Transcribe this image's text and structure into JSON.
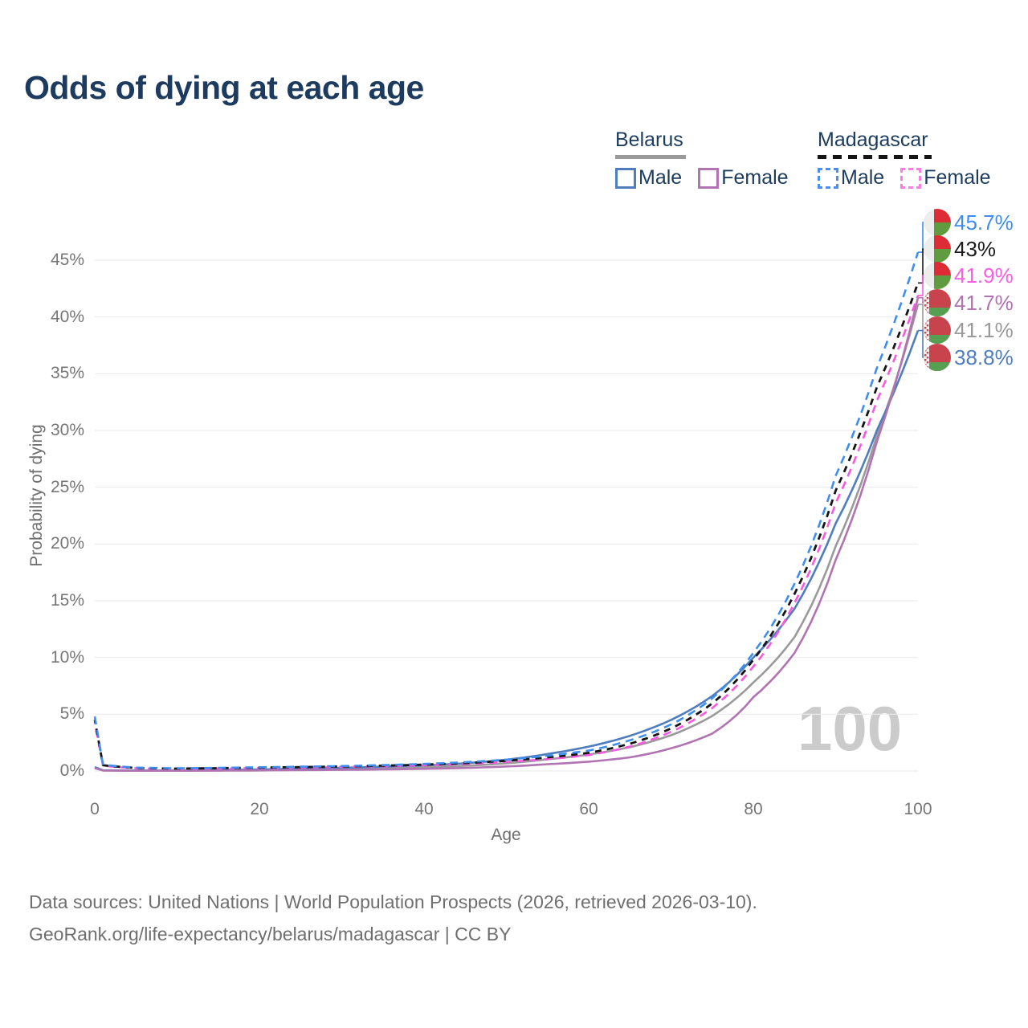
{
  "title": "Odds of dying at each age",
  "watermark": "100",
  "legend": {
    "groups": [
      {
        "country": "Belarus",
        "swatch_color": "#9a9a9a",
        "style": "solid",
        "items": [
          {
            "label": "Male",
            "color": "#4f7dbe",
            "style": "solid"
          },
          {
            "label": "Female",
            "color": "#b173b1",
            "style": "solid"
          }
        ]
      },
      {
        "country": "Madagascar",
        "swatch_color": "#151515",
        "style": "dashed",
        "items": [
          {
            "label": "Male",
            "color": "#4b8df0",
            "style": "dashed"
          },
          {
            "label": "Female",
            "color": "#fb7ce2",
            "style": "dashed"
          }
        ]
      }
    ]
  },
  "chart_data": {
    "type": "line",
    "title": "Odds of dying at each age",
    "xlabel": "Age",
    "ylabel": "Probability of dying",
    "xlim": [
      0,
      100
    ],
    "ylim": [
      0,
      47
    ],
    "grid": true,
    "x_ticks": [
      "0",
      "20",
      "40",
      "60",
      "80",
      "100"
    ],
    "y_ticks": [
      "0%",
      "5%",
      "10%",
      "15%",
      "20%",
      "25%",
      "30%",
      "35%",
      "40%",
      "45%"
    ],
    "ages": [
      0,
      1,
      5,
      10,
      15,
      20,
      25,
      30,
      35,
      40,
      45,
      50,
      55,
      60,
      65,
      70,
      75,
      80,
      85,
      90,
      95,
      100
    ],
    "unit": "percent",
    "series": [
      {
        "name": "Belarus both sexes",
        "country": "Belarus",
        "sex": "both",
        "color": "#9a9a9a",
        "dash": "solid",
        "values": [
          0.3,
          0.05,
          0.03,
          0.03,
          0.05,
          0.09,
          0.13,
          0.18,
          0.25,
          0.33,
          0.46,
          0.68,
          1.03,
          1.45,
          2.1,
          3.15,
          4.85,
          7.8,
          11.8,
          19.8,
          29.5,
          41.1
        ]
      },
      {
        "name": "Belarus male",
        "country": "Belarus",
        "sex": "male",
        "color": "#4f7dbe",
        "dash": "solid",
        "values": [
          0.35,
          0.06,
          0.04,
          0.04,
          0.08,
          0.14,
          0.2,
          0.28,
          0.38,
          0.5,
          0.68,
          1.0,
          1.5,
          2.15,
          3.1,
          4.5,
          6.6,
          10.0,
          14.3,
          21.8,
          30.0,
          38.8
        ]
      },
      {
        "name": "Belarus female",
        "country": "Belarus",
        "sex": "female",
        "color": "#b173b1",
        "dash": "solid",
        "values": [
          0.25,
          0.04,
          0.02,
          0.02,
          0.03,
          0.05,
          0.08,
          0.1,
          0.14,
          0.19,
          0.27,
          0.4,
          0.6,
          0.82,
          1.2,
          2.0,
          3.3,
          6.5,
          10.4,
          18.6,
          29.0,
          41.7
        ]
      },
      {
        "name": "Madagascar female",
        "country": "Madagascar",
        "sex": "female",
        "color": "#f958e0",
        "dash": "dashed",
        "values": [
          4.2,
          0.46,
          0.24,
          0.19,
          0.22,
          0.26,
          0.3,
          0.36,
          0.42,
          0.5,
          0.62,
          0.8,
          1.05,
          1.4,
          2.15,
          3.45,
          5.55,
          9.2,
          14.8,
          23.6,
          32.6,
          41.9
        ]
      },
      {
        "name": "Madagascar both sexes",
        "country": "Madagascar",
        "sex": "both",
        "color": "#151515",
        "dash": "dashed",
        "values": [
          4.5,
          0.5,
          0.27,
          0.21,
          0.25,
          0.3,
          0.34,
          0.4,
          0.47,
          0.56,
          0.7,
          0.9,
          1.2,
          1.6,
          2.4,
          3.75,
          5.95,
          9.8,
          15.6,
          24.7,
          33.8,
          43.0
        ]
      },
      {
        "name": "Madagascar male",
        "country": "Madagascar",
        "sex": "male",
        "color": "#3e8ef0",
        "dash": "dashed",
        "values": [
          4.8,
          0.55,
          0.3,
          0.24,
          0.28,
          0.33,
          0.38,
          0.44,
          0.52,
          0.62,
          0.78,
          1.0,
          1.35,
          1.8,
          2.7,
          4.1,
          6.4,
          10.4,
          16.5,
          26.0,
          35.5,
          45.7
        ]
      }
    ],
    "end_labels": [
      {
        "value": "45.7%",
        "number": 45.7,
        "color": "#3e8ef0",
        "flag": "madagascar",
        "series": "Madagascar male"
      },
      {
        "value": "43%",
        "number": 43.0,
        "color": "#1a1a1a",
        "flag": "madagascar",
        "series": "Madagascar both sexes"
      },
      {
        "value": "41.9%",
        "number": 41.9,
        "color": "#fb5ce4",
        "flag": "madagascar",
        "series": "Madagascar female"
      },
      {
        "value": "41.7%",
        "number": 41.7,
        "color": "#b173b1",
        "flag": "belarus",
        "series": "Belarus female"
      },
      {
        "value": "41.1%",
        "number": 41.1,
        "color": "#9a9a9a",
        "flag": "belarus",
        "series": "Belarus both sexes"
      },
      {
        "value": "38.8%",
        "number": 38.8,
        "color": "#4f7dbe",
        "flag": "belarus",
        "series": "Belarus male"
      }
    ],
    "legend_position": "top-right",
    "colors": {
      "title_text": "#1d3a5f",
      "axis_text": "#767676",
      "gridline": "#ececec",
      "watermark": "#cbcbcb",
      "footer_text": "#6f6f6f"
    }
  },
  "footer": {
    "line1": "Data sources: United Nations | World Population Prospects (2026, retrieved 2026-03-10).",
    "line2": "GeoRank.org/life-expectancy/belarus/madagascar | CC BY"
  }
}
